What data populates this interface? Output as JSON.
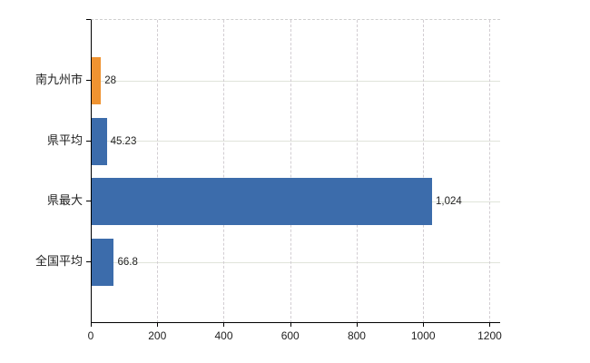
{
  "chart_data": {
    "type": "bar",
    "orientation": "horizontal",
    "title": "",
    "xlabel": "",
    "ylabel": "",
    "categories": [
      "南九州市",
      "県平均",
      "県最大",
      "全国平均"
    ],
    "values": [
      28,
      45.23,
      1024,
      66.8
    ],
    "value_labels": [
      "28",
      "45.23",
      "1,024",
      "66.8"
    ],
    "series": [
      {
        "name": "",
        "values": [
          28,
          45.23,
          1024,
          66.8
        ]
      }
    ],
    "bar_colors": [
      "#ef9331",
      "#3c6cab",
      "#3c6cab",
      "#3c6cab"
    ],
    "xlim": [
      0,
      1228.8
    ],
    "x_ticks": [
      0,
      200,
      400,
      600,
      800,
      1000,
      1200
    ],
    "x_tick_labels": [
      "0",
      "200",
      "400",
      "600",
      "800",
      "1000",
      "1200"
    ],
    "grid": true,
    "legend": "none",
    "colors": {
      "highlight_bar": "#ef9331",
      "default_bar": "#3c6cab",
      "axis": "#000000",
      "gridline_dashed": "#d2cdd2",
      "gridline_horizontal": "#e0e4da",
      "text": "#1f1f1f"
    }
  }
}
